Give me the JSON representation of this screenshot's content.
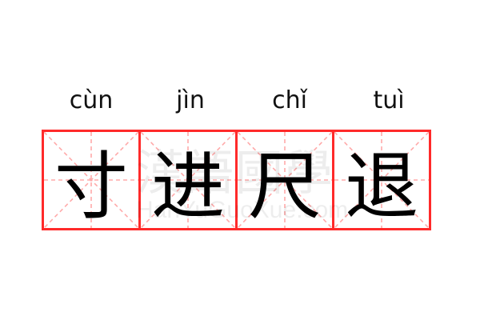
{
  "pinyin": [
    "cùn",
    "jìn",
    "chǐ",
    "tuì"
  ],
  "characters": [
    "寸",
    "进",
    "尺",
    "退"
  ],
  "watermark": {
    "cn": "漢語國學",
    "en": "HanYuGuoXue.com"
  },
  "colors": {
    "grid_border": "#ff2a2a",
    "grid_guides": "#ffaaaa",
    "text": "#000000"
  }
}
